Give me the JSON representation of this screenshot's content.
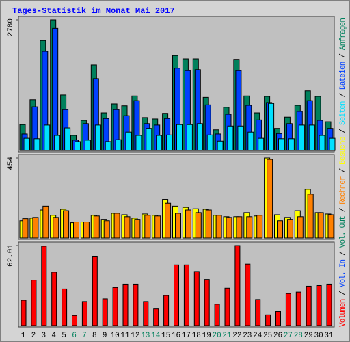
{
  "title": "Tages-Statistik im Monat Mai 2017",
  "legend_separator": "/",
  "chart_data": [
    {
      "type": "bar",
      "categories": [
        "1",
        "2",
        "3",
        "4",
        "5",
        "6",
        "7",
        "8",
        "9",
        "10",
        "11",
        "12",
        "13",
        "14",
        "15",
        "16",
        "17",
        "18",
        "19",
        "20",
        "21",
        "22",
        "23",
        "24",
        "25",
        "26",
        "27",
        "28",
        "29",
        "30",
        "31"
      ],
      "ylim": [
        0,
        2780
      ],
      "yticks": [
        2780
      ],
      "series": [
        {
          "name": "Anfragen",
          "color": "#00805c",
          "values": [
            550,
            1080,
            2340,
            2780,
            1180,
            320,
            640,
            1820,
            800,
            990,
            950,
            1160,
            700,
            670,
            790,
            2020,
            1950,
            1950,
            1130,
            440,
            920,
            1940,
            1160,
            800,
            1150,
            470,
            710,
            960,
            1270,
            1150,
            610
          ]
        },
        {
          "name": "Dateien",
          "color": "#0040ff",
          "values": [
            350,
            930,
            2110,
            2600,
            870,
            220,
            570,
            1530,
            680,
            870,
            740,
            1060,
            570,
            540,
            680,
            1750,
            1700,
            1720,
            970,
            350,
            770,
            1700,
            960,
            650,
            1020,
            360,
            570,
            830,
            1060,
            640,
            470
          ]
        },
        {
          "name": "Seiten",
          "color": "#00e0ff",
          "values": [
            260,
            250,
            540,
            320,
            480,
            190,
            220,
            540,
            190,
            230,
            390,
            320,
            470,
            320,
            330,
            550,
            550,
            570,
            330,
            200,
            520,
            520,
            390,
            260,
            1000,
            250,
            250,
            540,
            540,
            320,
            260
          ]
        }
      ]
    },
    {
      "type": "bar",
      "categories": [
        "1",
        "2",
        "3",
        "4",
        "5",
        "6",
        "7",
        "8",
        "9",
        "10",
        "11",
        "12",
        "13",
        "14",
        "15",
        "16",
        "17",
        "18",
        "19",
        "20",
        "21",
        "22",
        "23",
        "24",
        "25",
        "26",
        "27",
        "28",
        "29",
        "30",
        "31"
      ],
      "category_colors": [
        "#000000",
        "#000000",
        "#000000",
        "#000000",
        "#000000",
        "#00805c",
        "#00805c",
        "#000000",
        "#000000",
        "#000000",
        "#000000",
        "#000000",
        "#00805c",
        "#00805c",
        "#000000",
        "#000000",
        "#000000",
        "#000000",
        "#000000",
        "#00805c",
        "#00805c",
        "#000000",
        "#000000",
        "#000000",
        "#000000",
        "#000000",
        "#00805c",
        "#00805c",
        "#000000",
        "#000000",
        "#000000"
      ],
      "ylim": [
        0,
        454
      ],
      "yticks": [
        454
      ],
      "series": [
        {
          "name": "Besuche",
          "color": "#ffff00",
          "values": [
            98,
            113,
            159,
            129,
            163,
            87,
            91,
            129,
            106,
            140,
            132,
            113,
            136,
            129,
            219,
            181,
            174,
            166,
            163,
            129,
            121,
            121,
            144,
            125,
            454,
            132,
            117,
            155,
            276,
            144,
            136
          ]
        },
        {
          "name": "Rechner",
          "color": "#ff8000",
          "values": [
            110,
            117,
            181,
            117,
            155,
            91,
            91,
            125,
            98,
            140,
            121,
            106,
            129,
            125,
            197,
            140,
            159,
            144,
            159,
            129,
            117,
            121,
            121,
            129,
            446,
            98,
            106,
            121,
            249,
            144,
            132
          ]
        }
      ]
    },
    {
      "type": "bar",
      "categories": [
        "1",
        "2",
        "3",
        "4",
        "5",
        "6",
        "7",
        "8",
        "9",
        "10",
        "11",
        "12",
        "13",
        "14",
        "15",
        "16",
        "17",
        "18",
        "19",
        "20",
        "21",
        "22",
        "23",
        "24",
        "25",
        "26",
        "27",
        "28",
        "29",
        "30",
        "31"
      ],
      "ylim": [
        0,
        62.01
      ],
      "yticks": [
        62.01
      ],
      "series": [
        {
          "name": "Vol. Out",
          "color": "#00805c"
        },
        {
          "name": "Vol. In",
          "color": "#0040ff"
        },
        {
          "name": "Volumen",
          "color": "#ff0000",
          "values": [
            19.6,
            35.2,
            61.5,
            41.4,
            28.4,
            7.8,
            18.6,
            53.8,
            20.7,
            29.5,
            32.1,
            32.1,
            18.6,
            12.9,
            23.3,
            47.0,
            47.0,
            41.9,
            35.7,
            16.5,
            29.0,
            62.0,
            47.6,
            20.2,
            8.3,
            10.9,
            24.8,
            25.9,
            30.5,
            31.0,
            32.1
          ]
        }
      ]
    }
  ]
}
